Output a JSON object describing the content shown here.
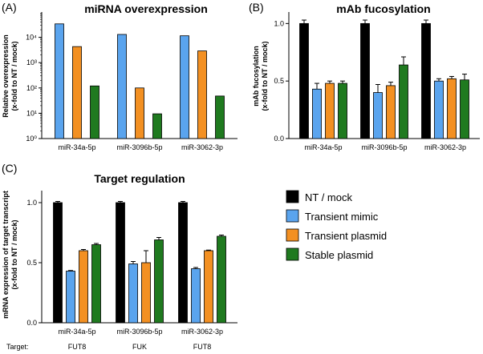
{
  "colors": {
    "NT / mock": "#000000",
    "Transient mimic": "#5aa4ee",
    "Transient plasmid": "#f39022",
    "Stable plasmid": "#1f7a1f"
  },
  "legend": [
    "NT / mock",
    "Transient mimic",
    "Transient plasmid",
    "Stable plasmid"
  ],
  "target_label": "Target:",
  "chart_data": [
    {
      "panel": "(A)",
      "type": "bar",
      "title": "miRNA overexpression",
      "ylabel": [
        "Relative overexpression",
        "(x-fold to NT / mock)"
      ],
      "yscale": "log",
      "ylim": [
        1,
        100000
      ],
      "yticks": [
        1,
        10,
        100,
        1000,
        10000
      ],
      "ytick_labels": [
        "10⁰",
        "10¹",
        "10²",
        "10³",
        "10⁴"
      ],
      "categories": [
        "miR-34a-5p",
        "miR-3096b-5p",
        "miR-3062-3p"
      ],
      "series": [
        {
          "name": "Transient mimic",
          "values": [
            34000,
            13000,
            11500
          ],
          "errors": [
            0,
            0,
            0
          ]
        },
        {
          "name": "Transient plasmid",
          "values": [
            4300,
            100,
            2900
          ],
          "errors": [
            0,
            0,
            0
          ]
        },
        {
          "name": "Stable plasmid",
          "values": [
            120,
            9.5,
            48
          ],
          "errors": [
            0,
            0,
            0
          ]
        }
      ]
    },
    {
      "panel": "(B)",
      "type": "bar",
      "title": "mAb fucosylation",
      "ylabel": [
        "mAb fucosylation",
        "(x-fold to NT / mock)"
      ],
      "yscale": "linear",
      "ylim": [
        0,
        1.1
      ],
      "yticks": [
        0,
        0.5,
        1.0
      ],
      "ytick_labels": [
        "0.0",
        "0.5",
        "1.0"
      ],
      "categories": [
        "miR-34a-5p",
        "miR-3096b-5p",
        "miR-3062-3p"
      ],
      "series": [
        {
          "name": "NT / mock",
          "values": [
            1.0,
            1.0,
            1.0
          ],
          "errors": [
            0.03,
            0.03,
            0.03
          ]
        },
        {
          "name": "Transient mimic",
          "values": [
            0.43,
            0.4,
            0.5
          ],
          "errors": [
            0.05,
            0.07,
            0.02
          ]
        },
        {
          "name": "Transient plasmid",
          "values": [
            0.48,
            0.46,
            0.52
          ],
          "errors": [
            0.02,
            0.03,
            0.02
          ]
        },
        {
          "name": "Stable plasmid",
          "values": [
            0.48,
            0.64,
            0.51
          ],
          "errors": [
            0.02,
            0.07,
            0.05
          ]
        }
      ]
    },
    {
      "panel": "(C)",
      "type": "bar",
      "title": "Target regulation",
      "ylabel": [
        "mRNA expression of target transcript",
        "(x-fold to NT / mock)"
      ],
      "yscale": "linear",
      "ylim": [
        0,
        1.1
      ],
      "yticks": [
        0,
        0.5,
        1.0
      ],
      "ytick_labels": [
        "0.0",
        "0.5",
        "1.0"
      ],
      "categories": [
        "miR-34a-5p",
        "miR-3096b-5p",
        "miR-3062-3p"
      ],
      "targets": [
        "FUT8",
        "FUK",
        "FUT8"
      ],
      "series": [
        {
          "name": "NT / mock",
          "values": [
            1.0,
            1.0,
            1.0
          ],
          "errors": [
            0.01,
            0.01,
            0.01
          ]
        },
        {
          "name": "Transient mimic",
          "values": [
            0.43,
            0.49,
            0.45
          ],
          "errors": [
            0.005,
            0.02,
            0.01
          ]
        },
        {
          "name": "Transient plasmid",
          "values": [
            0.6,
            0.5,
            0.6
          ],
          "errors": [
            0.01,
            0.1,
            0.005
          ]
        },
        {
          "name": "Stable plasmid",
          "values": [
            0.65,
            0.69,
            0.72
          ],
          "errors": [
            0.01,
            0.02,
            0.01
          ]
        }
      ]
    }
  ]
}
